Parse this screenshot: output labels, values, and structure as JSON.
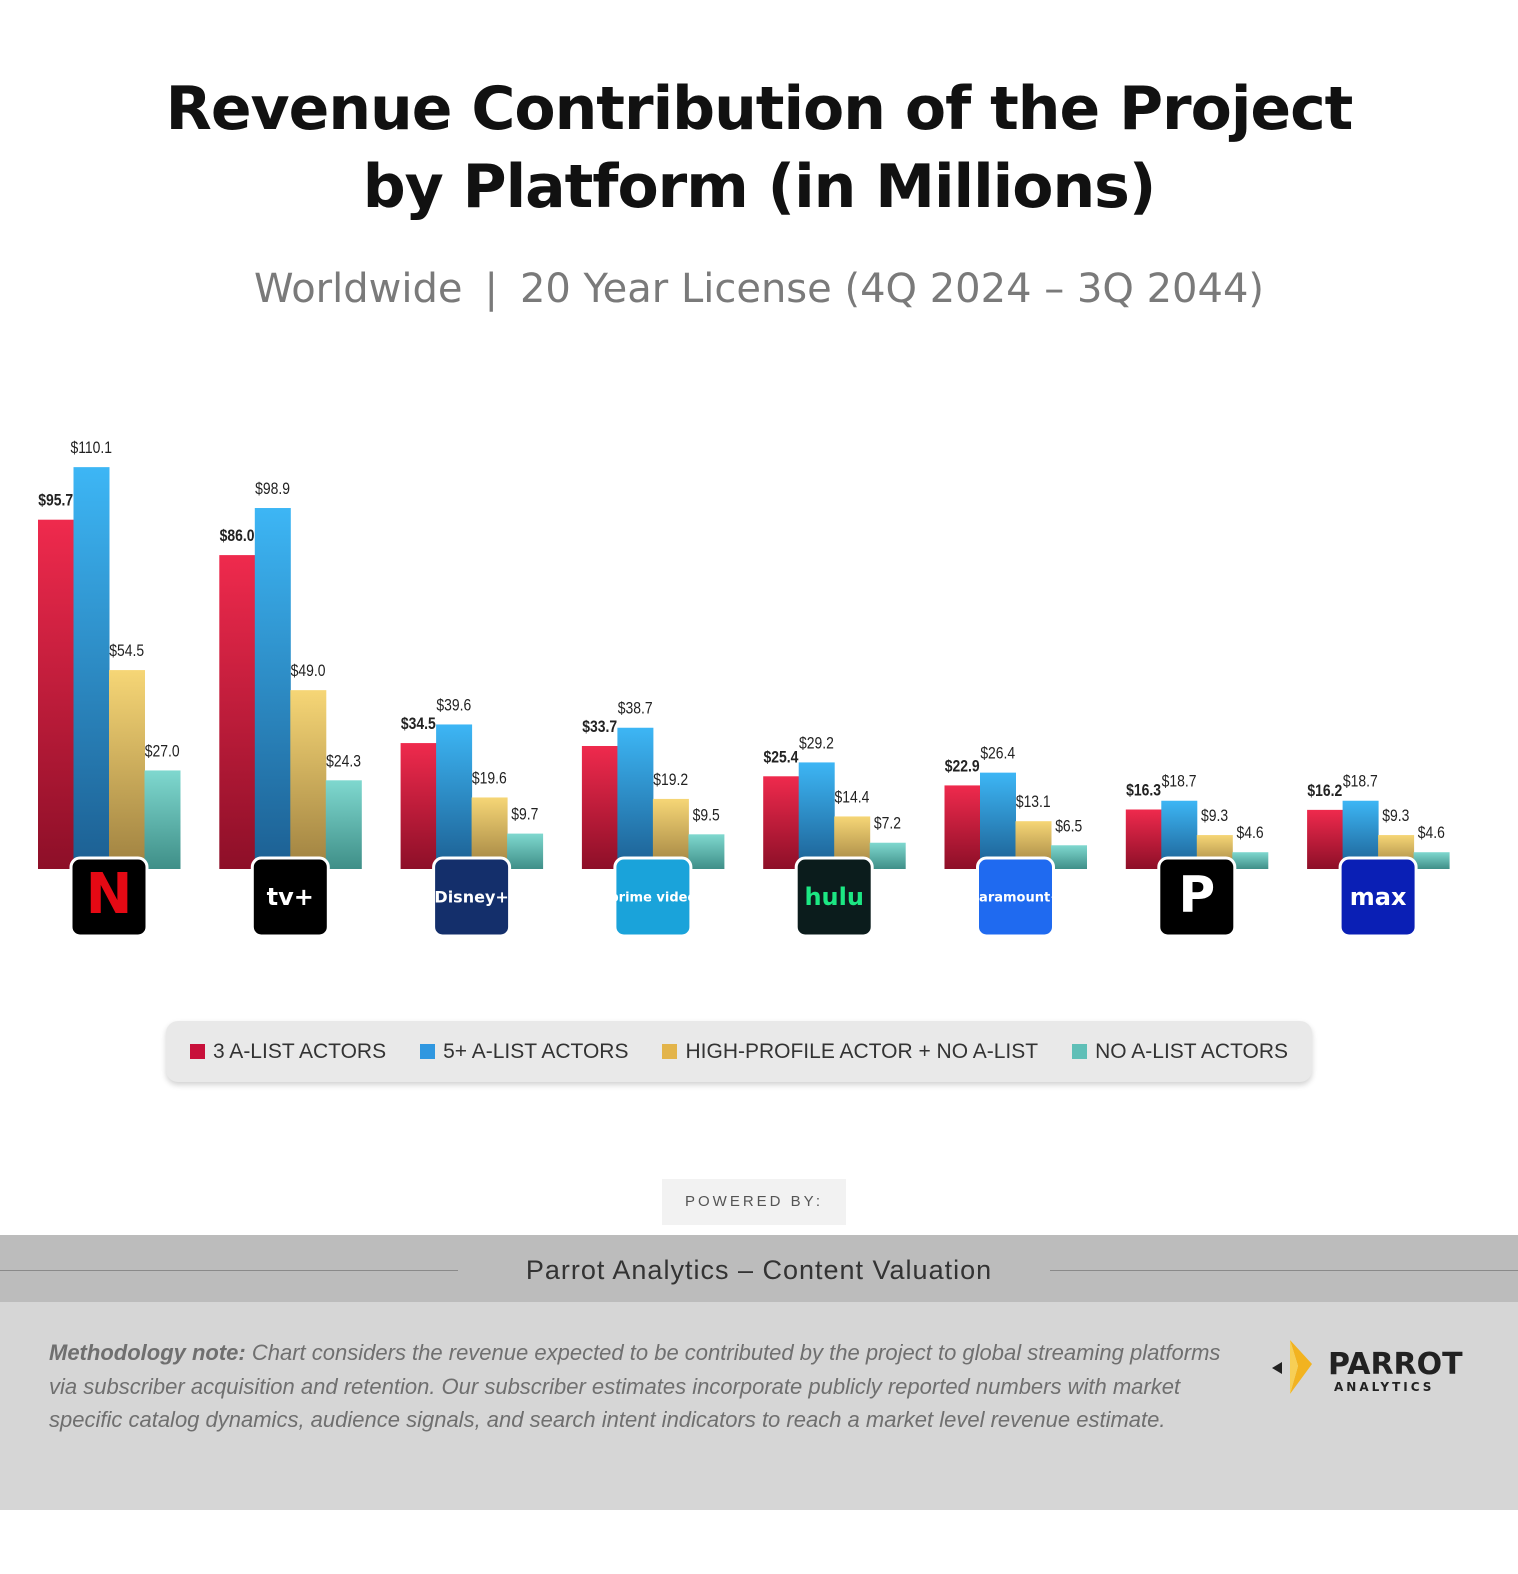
{
  "title_line1": "Revenue Contribution of the Project",
  "title_line2": "by Platform (in Millions)",
  "subtitle": {
    "region": "Worldwide",
    "separator": "|",
    "license": "20 Year License (4Q 2024 – 3Q 2044)"
  },
  "chart_data": {
    "type": "bar",
    "title": "Revenue Contribution of the Project by Platform (in Millions)",
    "categories": [
      "Netflix",
      "Apple TV+",
      "Disney+",
      "Prime Video",
      "Hulu",
      "Paramount+",
      "Peacock",
      "Max"
    ],
    "series": [
      {
        "name": "3 A-LIST ACTORS",
        "color": "#d8173f",
        "values": [
          95.7,
          86.0,
          34.5,
          33.7,
          25.4,
          22.9,
          16.3,
          16.2
        ],
        "labels": [
          "$95.7",
          "$86.0",
          "$34.5",
          "$33.7",
          "$25.4",
          "$22.9",
          "$16.3",
          "$16.2"
        ]
      },
      {
        "name": "5+ A-LIST ACTORS",
        "color": "#2f97e0",
        "values": [
          110.1,
          98.9,
          39.6,
          38.7,
          29.2,
          26.4,
          18.7,
          18.7
        ],
        "labels": [
          "$110.1",
          "$98.9",
          "$39.6",
          "$38.7",
          "$29.2",
          "$26.4",
          "$18.7",
          "$18.7"
        ]
      },
      {
        "name": "HIGH-PROFILE ACTOR + NO A-LIST",
        "color": "#e9c060",
        "values": [
          54.5,
          49.0,
          19.6,
          19.2,
          14.4,
          13.1,
          9.3,
          9.3
        ],
        "labels": [
          "$54.5",
          "$49.0",
          "$19.6",
          "$19.2",
          "$14.4",
          "$13.1",
          "$9.3",
          "$9.3"
        ]
      },
      {
        "name": "NO A-LIST ACTORS",
        "color": "#6fc9c0",
        "values": [
          27.0,
          24.3,
          9.7,
          9.5,
          7.2,
          6.5,
          4.6,
          4.6
        ],
        "labels": [
          "$27.0",
          "$24.3",
          "$9.7",
          "$9.5",
          "$7.2",
          "$6.5",
          "$4.6",
          "$4.6"
        ]
      }
    ],
    "ylim": [
      0,
      120
    ],
    "xlabel": "",
    "ylabel": "",
    "grid": false,
    "legend_position": "bottom"
  },
  "platform_logos": [
    {
      "name": "netflix-logo",
      "text": "N",
      "bg": "#000000",
      "color": "#e50914"
    },
    {
      "name": "apple-tv-logo",
      "text": "tv+",
      "bg": "#000000",
      "color": "#ffffff"
    },
    {
      "name": "disney-plus-logo",
      "text": "Disney+",
      "bg": "#142f6b",
      "color": "#ffffff"
    },
    {
      "name": "prime-video-logo",
      "text": "prime video",
      "bg": "#1aa3da",
      "color": "#ffffff"
    },
    {
      "name": "hulu-logo",
      "text": "hulu",
      "bg": "#0b1c1c",
      "color": "#1ce783"
    },
    {
      "name": "paramount-plus-logo",
      "text": "Paramount+",
      "bg": "#1f6af0",
      "color": "#ffffff"
    },
    {
      "name": "peacock-logo",
      "text": "P",
      "bg": "#000000",
      "color": "#ffffff"
    },
    {
      "name": "max-logo",
      "text": "max",
      "bg": "#0a1fb5",
      "color": "#ffffff"
    }
  ],
  "legend": [
    {
      "label": "3 A-LIST ACTORS",
      "color": "#c8103a"
    },
    {
      "label": "5+ A-LIST ACTORS",
      "color": "#2f97e0"
    },
    {
      "label": "HIGH-PROFILE ACTOR + NO A-LIST",
      "color": "#e3b44a"
    },
    {
      "label": "NO A-LIST ACTORS",
      "color": "#5fbfb7"
    }
  ],
  "powered_by": "POWERED BY:",
  "band_text": "Parrot Analytics – Content Valuation",
  "methodology_label": "Methodology note:",
  "methodology_text": "Chart considers the revenue expected to be contributed by the project to global streaming platforms via subscriber acquisition and retention. Our subscriber estimates incorporate publicly reported numbers with market specific catalog dynamics, audience signals, and search intent indicators to reach a market level revenue estimate.",
  "brand": {
    "name": "PARROT",
    "tagline": "ANALYTICS"
  }
}
